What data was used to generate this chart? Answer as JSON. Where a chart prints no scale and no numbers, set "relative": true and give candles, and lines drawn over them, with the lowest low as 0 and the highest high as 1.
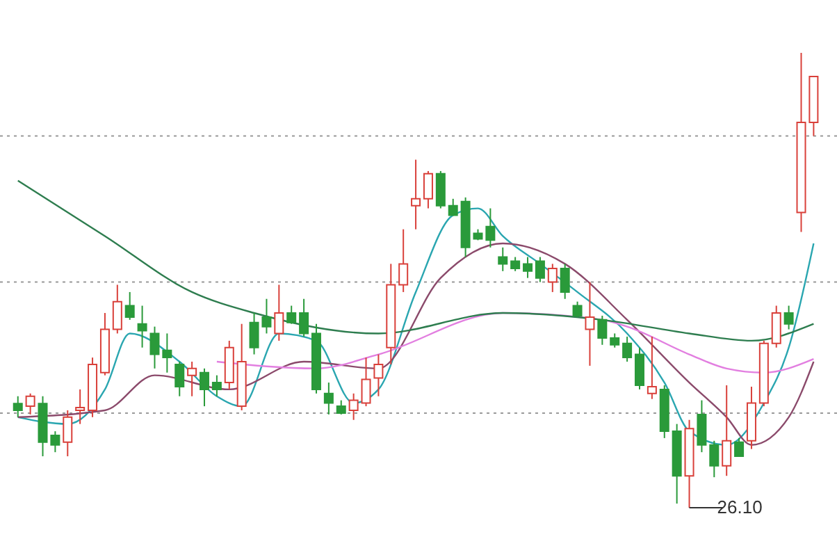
{
  "chart_data": {
    "type": "candlestick",
    "relative": true,
    "categories": [
      null,
      null,
      null,
      null,
      null,
      null,
      null,
      null,
      null,
      null,
      null,
      null,
      null,
      null,
      null,
      null,
      null,
      null,
      null,
      null,
      null,
      null,
      null,
      null,
      null,
      null,
      null,
      null,
      null,
      null,
      null,
      null,
      null,
      null,
      null,
      null,
      null,
      null,
      null,
      null,
      null,
      null,
      null,
      null,
      null,
      null,
      null,
      null,
      null,
      null,
      null,
      null,
      null,
      null,
      null,
      null,
      null,
      null,
      null,
      null,
      null,
      null,
      null,
      null,
      null
    ],
    "colors": [
      "#2a9a3a",
      "#d9403a",
      "#2a9a3a",
      "#2a9a3a",
      "#d9403a",
      "#d9403a",
      "#d9403a",
      "#d9403a",
      "#d9403a",
      "#2a9a3a",
      "#2a9a3a",
      "#2a9a3a",
      "#2a9a3a",
      "#2a9a3a",
      "#d9403a",
      "#2a9a3a",
      "#2a9a3a",
      "#d9403a",
      "#d9403a",
      "#2a9a3a",
      "#2a9a3a",
      "#d9403a",
      "#2a9a3a",
      "#2a9a3a",
      "#2a9a3a",
      "#2a9a3a",
      "#2a9a3a",
      "#d9403a",
      "#d9403a",
      "#d9403a",
      "#d9403a",
      "#d9403a",
      "#d9403a",
      "#d9403a",
      "#2a9a3a",
      "#2a9a3a",
      "#2a9a3a",
      "#2a9a3a",
      "#2a9a3a",
      "#2a9a3a",
      "#2a9a3a",
      "#2a9a3a",
      "#2a9a3a",
      "#d9403a",
      "#2a9a3a",
      "#2a9a3a",
      "#d9403a",
      "#2a9a3a",
      "#2a9a3a",
      "#2a9a3a",
      "#2a9a3a",
      "#d9403a",
      "#2a9a3a",
      "#2a9a3a",
      "#d9403a",
      "#2a9a3a",
      "#2a9a3a",
      "#d9403a",
      "#2a9a3a",
      "#d9403a",
      "#d9403a",
      "#d9403a",
      "#2a9a3a",
      "#d9403a",
      "#d9403a"
    ],
    "ohlc": [
      [
        0.229,
        0.245,
        0.199,
        0.214
      ],
      [
        0.223,
        0.251,
        0.205,
        0.245
      ],
      [
        0.229,
        0.245,
        0.113,
        0.144
      ],
      [
        0.159,
        0.168,
        0.122,
        0.138
      ],
      [
        0.144,
        0.214,
        0.113,
        0.199
      ],
      [
        0.214,
        0.26,
        0.184,
        0.22
      ],
      [
        0.214,
        0.33,
        0.199,
        0.315
      ],
      [
        0.297,
        0.428,
        0.291,
        0.392
      ],
      [
        0.392,
        0.49,
        0.383,
        0.453
      ],
      [
        0.444,
        0.474,
        0.413,
        0.419
      ],
      [
        0.404,
        0.444,
        0.352,
        0.389
      ],
      [
        0.383,
        0.398,
        0.306,
        0.337
      ],
      [
        0.346,
        0.383,
        0.297,
        0.33
      ],
      [
        0.315,
        0.321,
        0.245,
        0.266
      ],
      [
        0.291,
        0.321,
        0.245,
        0.306
      ],
      [
        0.297,
        0.306,
        0.223,
        0.26
      ],
      [
        0.275,
        0.291,
        0.245,
        0.26
      ],
      [
        0.275,
        0.367,
        0.26,
        0.352
      ],
      [
        0.223,
        0.404,
        0.214,
        0.321
      ],
      [
        0.407,
        0.428,
        0.337,
        0.352
      ],
      [
        0.419,
        0.459,
        0.383,
        0.398
      ],
      [
        0.383,
        0.49,
        0.367,
        0.428
      ],
      [
        0.428,
        0.444,
        0.404,
        0.407
      ],
      [
        0.428,
        0.459,
        0.376,
        0.383
      ],
      [
        0.383,
        0.404,
        0.251,
        0.26
      ],
      [
        0.251,
        0.275,
        0.205,
        0.23
      ],
      [
        0.223,
        0.236,
        0.205,
        0.208
      ],
      [
        0.214,
        0.251,
        0.193,
        0.236
      ],
      [
        0.23,
        0.33,
        0.223,
        0.282
      ],
      [
        0.285,
        0.337,
        0.245,
        0.315
      ],
      [
        0.352,
        0.536,
        0.315,
        0.49
      ],
      [
        0.49,
        0.612,
        0.474,
        0.536
      ],
      [
        0.664,
        0.765,
        0.612,
        0.679
      ],
      [
        0.679,
        0.74,
        0.658,
        0.734
      ],
      [
        0.734,
        0.74,
        0.658,
        0.664
      ],
      [
        0.664,
        0.679,
        0.643,
        0.643
      ],
      [
        0.673,
        0.682,
        0.551,
        0.572
      ],
      [
        0.603,
        0.612,
        0.588,
        0.591
      ],
      [
        0.618,
        0.658,
        0.572,
        0.588
      ],
      [
        0.551,
        0.572,
        0.52,
        0.536
      ],
      [
        0.542,
        0.551,
        0.52,
        0.526
      ],
      [
        0.536,
        0.551,
        0.505,
        0.52
      ],
      [
        0.542,
        0.551,
        0.496,
        0.505
      ],
      [
        0.496,
        0.536,
        0.474,
        0.526
      ],
      [
        0.526,
        0.536,
        0.459,
        0.474
      ],
      [
        0.444,
        0.453,
        0.419,
        0.422
      ],
      [
        0.392,
        0.496,
        0.312,
        0.419
      ],
      [
        0.413,
        0.422,
        0.358,
        0.373
      ],
      [
        0.373,
        0.383,
        0.352,
        0.358
      ],
      [
        0.361,
        0.376,
        0.321,
        0.33
      ],
      [
        0.337,
        0.352,
        0.26,
        0.269
      ],
      [
        0.251,
        0.376,
        0.239,
        0.266
      ],
      [
        0.26,
        0.269,
        0.153,
        0.168
      ],
      [
        0.168,
        0.184,
        0.009,
        0.07
      ],
      [
        0.07,
        0.193,
        0,
        0.174
      ],
      [
        0.205,
        0.236,
        0.122,
        0.138
      ],
      [
        0.138,
        0.147,
        0.067,
        0.092
      ],
      [
        0.092,
        0.269,
        0.07,
        0.147
      ],
      [
        0.144,
        0.153,
        0.113,
        0.113
      ],
      [
        0.147,
        0.266,
        0.129,
        0.23
      ],
      [
        0.23,
        0.367,
        0.223,
        0.361
      ],
      [
        0.361,
        0.444,
        0.352,
        0.428
      ],
      [
        0.428,
        0.444,
        0.392,
        0.404
      ],
      [
        0.649,
        1.0,
        0.606,
        0.847
      ],
      [
        0.847,
        0.948,
        0.817,
        0.948
      ]
    ],
    "series": [
      {
        "type": "line",
        "color": "#2aa6b0",
        "values": [
          0.199,
          null,
          null,
          null,
          0.184,
          null,
          null,
          0.26,
          null,
          0.383,
          null,
          null,
          null,
          0.321,
          null,
          null,
          0.245,
          null,
          0.223,
          null,
          null,
          0.383,
          null,
          null,
          0.367,
          null,
          null,
          0.23,
          null,
          0.26,
          null,
          null,
          0.474,
          null,
          null,
          0.643,
          null,
          0.658,
          null,
          0.597,
          null,
          null,
          0.536,
          null,
          null,
          0.474,
          null,
          null,
          null,
          0.383,
          null,
          null,
          0.275,
          null,
          0.168,
          null,
          null,
          0.138,
          null,
          null,
          0.23,
          null,
          0.352,
          null,
          0.581
        ]
      },
      {
        "type": "line",
        "color": "#8b4a6b",
        "values": [
          0.199,
          null,
          null,
          null,
          null,
          null,
          null,
          0.214,
          null,
          null,
          null,
          0.291,
          null,
          null,
          null,
          null,
          null,
          0.26,
          null,
          null,
          null,
          null,
          null,
          0.321,
          null,
          null,
          null,
          null,
          null,
          0.306,
          null,
          null,
          null,
          null,
          0.505,
          null,
          null,
          null,
          null,
          0.581,
          null,
          null,
          null,
          null,
          0.536,
          null,
          null,
          null,
          null,
          0.413,
          null,
          null,
          null,
          null,
          0.275,
          null,
          null,
          0.199,
          null,
          0.138,
          null,
          null,
          0.199,
          null,
          0.321
        ]
      },
      {
        "type": "line",
        "color": "#e27fe0",
        "values": [
          null,
          null,
          null,
          null,
          null,
          null,
          null,
          null,
          null,
          null,
          null,
          null,
          null,
          null,
          null,
          null,
          0.321,
          null,
          null,
          null,
          null,
          null,
          null,
          null,
          0.306,
          null,
          null,
          null,
          null,
          0.337,
          null,
          null,
          null,
          null,
          null,
          null,
          null,
          null,
          null,
          0.428,
          null,
          null,
          null,
          null,
          null,
          null,
          null,
          0.413,
          null,
          0.398,
          null,
          null,
          null,
          null,
          0.337,
          null,
          null,
          0.306,
          null,
          null,
          0.297,
          null,
          null,
          null,
          0.327
        ]
      },
      {
        "type": "line",
        "color": "#2e7d4f",
        "values": [
          0.719,
          null,
          null,
          null,
          null,
          null,
          null,
          0.597,
          null,
          null,
          null,
          null,
          null,
          null,
          0.474,
          null,
          null,
          null,
          null,
          0.428,
          null,
          null,
          null,
          null,
          null,
          null,
          null,
          null,
          null,
          0.383,
          null,
          null,
          null,
          null,
          null,
          null,
          null,
          null,
          null,
          0.428,
          null,
          null,
          null,
          null,
          null,
          null,
          null,
          0.413,
          null,
          null,
          null,
          null,
          null,
          null,
          0.383,
          null,
          null,
          null,
          null,
          0.367,
          null,
          null,
          null,
          null,
          0.404
        ]
      }
    ],
    "ref_lines": [
      {
        "axis": "y",
        "value": 0.817,
        "color": "#999999",
        "line_style": "dotted"
      },
      {
        "axis": "y",
        "value": 0.496,
        "color": "#999999",
        "line_style": "dotted"
      },
      {
        "axis": "y",
        "value": 0.208,
        "color": "#999999",
        "line_style": "dotted"
      }
    ],
    "annotations": [
      "26.10"
    ]
  }
}
